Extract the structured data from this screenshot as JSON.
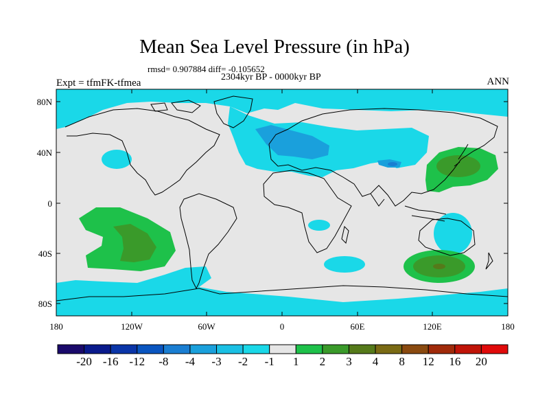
{
  "title": "Mean Sea Level Pressure (in hPa)",
  "stats": "rmsd= 0.907884 diff= -0.105652",
  "period": "2304kyr BP - 0000kyr BP",
  "experiment": "Expt = tfmFK-tfmea",
  "season": "ANN",
  "lat_labels": [
    "80N",
    "40N",
    "0",
    "40S",
    "80S"
  ],
  "lon_labels": [
    "180",
    "120W",
    "60W",
    "0",
    "60E",
    "120E",
    "180"
  ],
  "colorbar": {
    "labels": [
      "-20",
      "-16",
      "-12",
      "-8",
      "-4",
      "-3",
      "-2",
      "-1",
      "1",
      "2",
      "3",
      "4",
      "8",
      "12",
      "16",
      "20"
    ],
    "colors": [
      "#1a0a6b",
      "#0a1a8c",
      "#0a35a8",
      "#0a55c0",
      "#1a7ed2",
      "#1aa0dc",
      "#1ac0e4",
      "#1ad8e8",
      "#e6e6e6",
      "#1ec14a",
      "#3a9a2a",
      "#557a1a",
      "#7a6a14",
      "#8a4a10",
      "#a02a0a",
      "#c01408",
      "#e00a0a"
    ]
  },
  "palette": {
    "neutral": "#e6e6e6",
    "neg1": "#1ad8e8",
    "neg2": "#1aa0dc",
    "neg3": "#1a7ed2",
    "pos1": "#1ec14a",
    "pos2": "#3a9a2a",
    "pos3": "#557a1a"
  }
}
